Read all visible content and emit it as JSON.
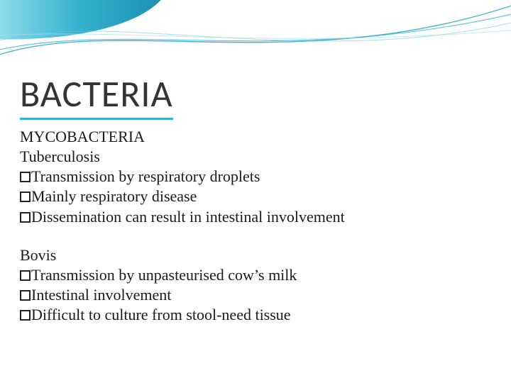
{
  "accent_color": "#2aa8c9",
  "underline_color": "#34b3cd",
  "title": "BACTERIA",
  "sections": [
    {
      "heading": "MYCOBACTERIA",
      "subheading": "Tuberculosis",
      "items": [
        "Transmission by respiratory droplets",
        "Mainly respiratory disease",
        "Dissemination can result in intestinal involvement"
      ]
    },
    {
      "subheading": "Bovis",
      "items": [
        "Transmission by unpasteurised cow’s milk",
        "Intestinal involvement",
        "Difficult to culture from stool-need tissue"
      ]
    }
  ]
}
